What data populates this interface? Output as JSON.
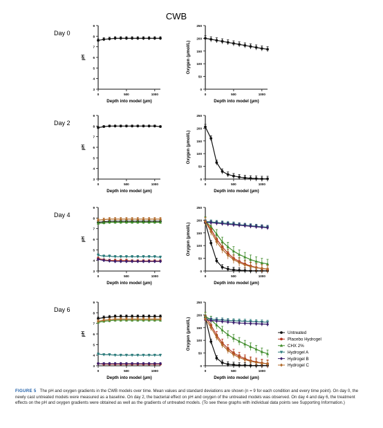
{
  "figure": {
    "title": "CWB",
    "caption_label": "FIGURE 5",
    "caption_text": "The pH and oxygen gradients in the CWB models over time. Mean values and standard deviations are shown (n = 9 for each condition and every time point). On day 0, the newly cast untreated models were measured as a baseline. On day 2, the bacterial effect on pH and oxygen of the untreated models was observed. On day 4 and day 6, the treatment effects on the pH and oxygen gradients were obtained as well as the gradients of untreated models. (To see these graphs with individual data points see Supporting Information.)"
  },
  "legend": [
    {
      "name": "Untreated",
      "color": "#111111",
      "marker": "circle"
    },
    {
      "name": "Placebo Hydrogel",
      "color": "#b5341f",
      "marker": "circle"
    },
    {
      "name": "CHX 2%",
      "color": "#3f8c2a",
      "marker": "triangle"
    },
    {
      "name": "Hydrogel A",
      "color": "#2a7a7a",
      "marker": "triangle-down"
    },
    {
      "name": "Hydrogel B",
      "color": "#3b1f6e",
      "marker": "diamond"
    },
    {
      "name": "Hydrogel C",
      "color": "#b06a2a",
      "marker": "diamond"
    }
  ],
  "chart_data": [
    {
      "type": "line",
      "panel": "Day 0",
      "measure": "pH",
      "ylabel": "pH",
      "xlabel": "Depth into model (µm)",
      "ylim": [
        3,
        9
      ],
      "yticks": [
        3,
        4,
        5,
        6,
        7,
        8,
        9
      ],
      "xlim": [
        0,
        1100
      ],
      "xticks": [
        0,
        500,
        1000
      ],
      "series": [
        {
          "name": "Untreated",
          "x": [
            0,
            100,
            200,
            300,
            400,
            500,
            600,
            700,
            800,
            900,
            1000,
            1100
          ],
          "y": [
            7.6,
            7.7,
            7.75,
            7.8,
            7.8,
            7.8,
            7.8,
            7.8,
            7.8,
            7.8,
            7.8,
            7.8
          ],
          "err": 0.15
        }
      ]
    },
    {
      "type": "line",
      "panel": "Day 0",
      "measure": "Oxygen",
      "ylabel": "Oxygen (µmol/L)",
      "xlabel": "Depth into model (µm)",
      "ylim": [
        0,
        250
      ],
      "yticks": [
        0,
        50,
        100,
        150,
        200,
        250
      ],
      "xlim": [
        0,
        1100
      ],
      "xticks": [
        0,
        500,
        1000
      ],
      "series": [
        {
          "name": "Untreated",
          "x": [
            0,
            100,
            200,
            300,
            400,
            500,
            600,
            700,
            800,
            900,
            1000,
            1100
          ],
          "y": [
            200,
            196,
            192,
            188,
            184,
            180,
            176,
            172,
            168,
            164,
            160,
            157
          ],
          "err": 10
        }
      ]
    },
    {
      "type": "line",
      "panel": "Day 2",
      "measure": "pH",
      "ylabel": "pH",
      "xlabel": "Depth into model (µm)",
      "ylim": [
        3,
        9
      ],
      "yticks": [
        3,
        4,
        5,
        6,
        7,
        8,
        9
      ],
      "xlim": [
        0,
        1100
      ],
      "xticks": [
        0,
        500,
        1000
      ],
      "series": [
        {
          "name": "Untreated",
          "x": [
            0,
            100,
            200,
            300,
            400,
            500,
            600,
            700,
            800,
            900,
            1000,
            1100
          ],
          "y": [
            7.85,
            7.95,
            8.0,
            8.0,
            8.0,
            8.0,
            8.0,
            8.0,
            8.0,
            8.0,
            8.0,
            7.95
          ],
          "err": 0.1
        }
      ]
    },
    {
      "type": "line",
      "panel": "Day 2",
      "measure": "Oxygen",
      "ylabel": "Oxygen (µmol/L)",
      "xlabel": "Depth into model (µm)",
      "ylim": [
        0,
        250
      ],
      "yticks": [
        0,
        50,
        100,
        150,
        200,
        250
      ],
      "xlim": [
        0,
        1100
      ],
      "xticks": [
        0,
        500,
        1000
      ],
      "series": [
        {
          "name": "Untreated",
          "x": [
            0,
            100,
            200,
            300,
            400,
            500,
            600,
            700,
            800,
            900,
            1000,
            1100
          ],
          "y": [
            205,
            160,
            65,
            30,
            18,
            12,
            8,
            5,
            3,
            2,
            1,
            1
          ],
          "err": 10
        }
      ]
    },
    {
      "type": "line",
      "panel": "Day 4",
      "measure": "pH",
      "ylabel": "pH",
      "xlabel": "Depth into model (µm)",
      "ylim": [
        3,
        9
      ],
      "yticks": [
        3,
        4,
        5,
        6,
        7,
        8,
        9
      ],
      "xlim": [
        0,
        1100
      ],
      "xticks": [
        0,
        500,
        1000
      ],
      "series": [
        {
          "name": "Untreated",
          "x": [
            0,
            100,
            200,
            300,
            400,
            500,
            600,
            700,
            800,
            900,
            1000,
            1100
          ],
          "y": [
            7.6,
            7.65,
            7.7,
            7.7,
            7.7,
            7.7,
            7.7,
            7.7,
            7.7,
            7.7,
            7.7,
            7.7
          ],
          "err": 0.15
        },
        {
          "name": "Placebo Hydrogel",
          "x": [
            0,
            100,
            200,
            300,
            400,
            500,
            600,
            700,
            800,
            900,
            1000,
            1100
          ],
          "y": [
            4.2,
            4.05,
            4.0,
            4.0,
            4.0,
            4.0,
            3.95,
            3.95,
            3.95,
            3.95,
            3.95,
            3.95
          ],
          "err": 0.12
        },
        {
          "name": "CHX 2%",
          "x": [
            0,
            100,
            200,
            300,
            400,
            500,
            600,
            700,
            800,
            900,
            1000,
            1100
          ],
          "y": [
            7.5,
            7.55,
            7.6,
            7.6,
            7.6,
            7.6,
            7.6,
            7.6,
            7.6,
            7.6,
            7.6,
            7.6
          ],
          "err": 0.15
        },
        {
          "name": "Hydrogel A",
          "x": [
            0,
            100,
            200,
            300,
            400,
            500,
            600,
            700,
            800,
            900,
            1000,
            1100
          ],
          "y": [
            4.5,
            4.4,
            4.4,
            4.35,
            4.35,
            4.35,
            4.35,
            4.35,
            4.35,
            4.35,
            4.35,
            4.3
          ],
          "err": 0.12
        },
        {
          "name": "Hydrogel B",
          "x": [
            0,
            100,
            200,
            300,
            400,
            500,
            600,
            700,
            800,
            900,
            1000,
            1100
          ],
          "y": [
            4.1,
            4.0,
            3.95,
            3.9,
            3.9,
            3.9,
            3.9,
            3.9,
            3.9,
            3.9,
            3.9,
            3.9
          ],
          "err": 0.12
        },
        {
          "name": "Hydrogel C",
          "x": [
            0,
            100,
            200,
            300,
            400,
            500,
            600,
            700,
            800,
            900,
            1000,
            1100
          ],
          "y": [
            7.8,
            7.85,
            7.9,
            7.9,
            7.9,
            7.9,
            7.9,
            7.9,
            7.9,
            7.9,
            7.9,
            7.9
          ],
          "err": 0.15
        }
      ]
    },
    {
      "type": "line",
      "panel": "Day 4",
      "measure": "Oxygen",
      "ylabel": "Oxygen (µmol/L)",
      "xlabel": "Depth into model (µm)",
      "ylim": [
        0,
        250
      ],
      "yticks": [
        0,
        50,
        100,
        150,
        200,
        250
      ],
      "xlim": [
        0,
        1100
      ],
      "xticks": [
        0,
        500,
        1000
      ],
      "series": [
        {
          "name": "Untreated",
          "x": [
            0,
            100,
            200,
            300,
            400,
            500,
            600,
            700,
            800,
            900,
            1000,
            1100
          ],
          "y": [
            190,
            110,
            40,
            15,
            8,
            5,
            3,
            2,
            1,
            1,
            1,
            1
          ],
          "err": 10
        },
        {
          "name": "Placebo Hydrogel",
          "x": [
            0,
            100,
            200,
            300,
            400,
            500,
            600,
            700,
            800,
            900,
            1000,
            1100
          ],
          "y": [
            195,
            165,
            125,
            95,
            70,
            50,
            38,
            28,
            20,
            14,
            10,
            7
          ],
          "err": 15
        },
        {
          "name": "CHX 2%",
          "x": [
            0,
            100,
            200,
            300,
            400,
            500,
            600,
            700,
            800,
            900,
            1000,
            1100
          ],
          "y": [
            195,
            175,
            145,
            115,
            95,
            78,
            65,
            55,
            45,
            38,
            32,
            28
          ],
          "err": 18
        },
        {
          "name": "Hydrogel A",
          "x": [
            0,
            100,
            200,
            300,
            400,
            500,
            600,
            700,
            800,
            900,
            1000,
            1100
          ],
          "y": [
            195,
            193,
            191,
            189,
            187,
            185,
            182,
            180,
            178,
            176,
            174,
            172
          ],
          "err": 8
        },
        {
          "name": "Hydrogel B",
          "x": [
            0,
            100,
            200,
            300,
            400,
            500,
            600,
            700,
            800,
            900,
            1000,
            1100
          ],
          "y": [
            192,
            190,
            188,
            186,
            184,
            182,
            180,
            178,
            176,
            174,
            172,
            170
          ],
          "err": 8
        },
        {
          "name": "Hydrogel C",
          "x": [
            0,
            100,
            200,
            300,
            400,
            500,
            600,
            700,
            800,
            900,
            1000,
            1100
          ],
          "y": [
            195,
            155,
            115,
            85,
            62,
            45,
            33,
            24,
            18,
            13,
            10,
            8
          ],
          "err": 15
        }
      ]
    },
    {
      "type": "line",
      "panel": "Day 6",
      "measure": "pH",
      "ylabel": "pH",
      "xlabel": "Depth into model (µm)",
      "ylim": [
        3,
        9
      ],
      "yticks": [
        3,
        4,
        5,
        6,
        7,
        8,
        9
      ],
      "xlim": [
        0,
        1100
      ],
      "xticks": [
        0,
        500,
        1000
      ],
      "series": [
        {
          "name": "Untreated",
          "x": [
            0,
            100,
            200,
            300,
            400,
            500,
            600,
            700,
            800,
            900,
            1000,
            1100
          ],
          "y": [
            7.45,
            7.55,
            7.6,
            7.65,
            7.65,
            7.65,
            7.65,
            7.65,
            7.65,
            7.65,
            7.65,
            7.65
          ],
          "err": 0.15
        },
        {
          "name": "Placebo Hydrogel",
          "x": [
            0,
            100,
            200,
            300,
            400,
            500,
            600,
            700,
            800,
            900,
            1000,
            1100
          ],
          "y": [
            3.2,
            3.15,
            3.15,
            3.15,
            3.15,
            3.15,
            3.15,
            3.15,
            3.15,
            3.15,
            3.15,
            3.15
          ],
          "err": 0.1
        },
        {
          "name": "CHX 2%",
          "x": [
            0,
            100,
            200,
            300,
            400,
            500,
            600,
            700,
            800,
            900,
            1000,
            1100
          ],
          "y": [
            7.1,
            7.2,
            7.25,
            7.3,
            7.3,
            7.3,
            7.3,
            7.3,
            7.3,
            7.3,
            7.3,
            7.3
          ],
          "err": 0.15
        },
        {
          "name": "Hydrogel A",
          "x": [
            0,
            100,
            200,
            300,
            400,
            500,
            600,
            700,
            800,
            900,
            1000,
            1100
          ],
          "y": [
            4.1,
            4.05,
            4.05,
            4.0,
            4.0,
            4.0,
            4.0,
            4.0,
            4.0,
            4.0,
            4.0,
            4.0
          ],
          "err": 0.1
        },
        {
          "name": "Hydrogel B",
          "x": [
            0,
            100,
            200,
            300,
            400,
            500,
            600,
            700,
            800,
            900,
            1000,
            1100
          ],
          "y": [
            3.2,
            3.2,
            3.2,
            3.2,
            3.2,
            3.2,
            3.2,
            3.2,
            3.2,
            3.2,
            3.2,
            3.2
          ],
          "err": 0.1
        },
        {
          "name": "Hydrogel C",
          "x": [
            0,
            100,
            200,
            300,
            400,
            500,
            600,
            700,
            800,
            900,
            1000,
            1100
          ],
          "y": [
            7.2,
            7.3,
            7.35,
            7.4,
            7.4,
            7.4,
            7.4,
            7.4,
            7.4,
            7.4,
            7.4,
            7.4
          ],
          "err": 0.15
        }
      ]
    },
    {
      "type": "line",
      "panel": "Day 6",
      "measure": "Oxygen",
      "ylabel": "Oxygen (µmol/L)",
      "xlabel": "Depth into model (µm)",
      "ylim": [
        0,
        250
      ],
      "yticks": [
        0,
        50,
        100,
        150,
        200,
        250
      ],
      "xlim": [
        0,
        1100
      ],
      "xticks": [
        0,
        500,
        1000
      ],
      "series": [
        {
          "name": "Untreated",
          "x": [
            0,
            100,
            200,
            300,
            400,
            500,
            600,
            700,
            800,
            900,
            1000,
            1100
          ],
          "y": [
            190,
            95,
            30,
            12,
            6,
            4,
            2,
            2,
            1,
            1,
            1,
            1
          ],
          "err": 10
        },
        {
          "name": "Placebo Hydrogel",
          "x": [
            0,
            100,
            200,
            300,
            400,
            500,
            600,
            700,
            800,
            900,
            1000,
            1100
          ],
          "y": [
            195,
            160,
            120,
            90,
            68,
            50,
            38,
            28,
            20,
            15,
            11,
            8
          ],
          "err": 15
        },
        {
          "name": "CHX 2%",
          "x": [
            0,
            100,
            200,
            300,
            400,
            500,
            600,
            700,
            800,
            900,
            1000,
            1100
          ],
          "y": [
            195,
            180,
            160,
            140,
            122,
            108,
            96,
            85,
            75,
            65,
            55,
            47
          ],
          "err": 15
        },
        {
          "name": "Hydrogel A",
          "x": [
            0,
            100,
            200,
            300,
            400,
            500,
            600,
            700,
            800,
            900,
            1000,
            1100
          ],
          "y": [
            185,
            183,
            181,
            180,
            178,
            177,
            176,
            175,
            174,
            173,
            172,
            171
          ],
          "err": 8
        },
        {
          "name": "Hydrogel B",
          "x": [
            0,
            100,
            200,
            300,
            400,
            500,
            600,
            700,
            800,
            900,
            1000,
            1100
          ],
          "y": [
            180,
            178,
            176,
            174,
            172,
            170,
            168,
            167,
            166,
            165,
            164,
            163
          ],
          "err": 8
        },
        {
          "name": "Hydrogel C",
          "x": [
            0,
            100,
            200,
            300,
            400,
            500,
            600,
            700,
            800,
            900,
            1000,
            1100
          ],
          "y": [
            185,
            150,
            112,
            82,
            60,
            44,
            32,
            24,
            18,
            13,
            10,
            8
          ],
          "err": 12
        }
      ]
    }
  ]
}
